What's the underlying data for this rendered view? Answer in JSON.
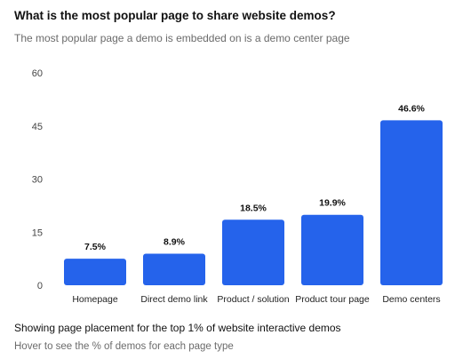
{
  "header": {
    "title": "What is the most popular page to share website demos?",
    "subtitle": "The most popular page a demo is embedded on is a demo center page"
  },
  "footer": {
    "title": "Showing page placement for the top 1% of website interactive demos",
    "subtitle": "Hover to see the % of demos for each page type"
  },
  "chart_data": {
    "type": "bar",
    "title": "What is the most popular page to share website demos?",
    "subtitle": "The most popular page a demo is embedded on is a demo center page",
    "categories": [
      "Homepage",
      "Direct demo link",
      "Product / solution",
      "Product tour page",
      "Demo centers"
    ],
    "values": [
      7.5,
      8.9,
      18.5,
      19.9,
      46.6
    ],
    "value_labels": [
      "7.5%",
      "8.9%",
      "18.5%",
      "19.9%",
      "46.6%"
    ],
    "xlabel": "",
    "ylabel": "",
    "ylim": [
      0,
      60
    ],
    "yticks": [
      0,
      15,
      30,
      45,
      60
    ],
    "grid": false,
    "legend": "none",
    "bar_color": "#2563eb"
  }
}
